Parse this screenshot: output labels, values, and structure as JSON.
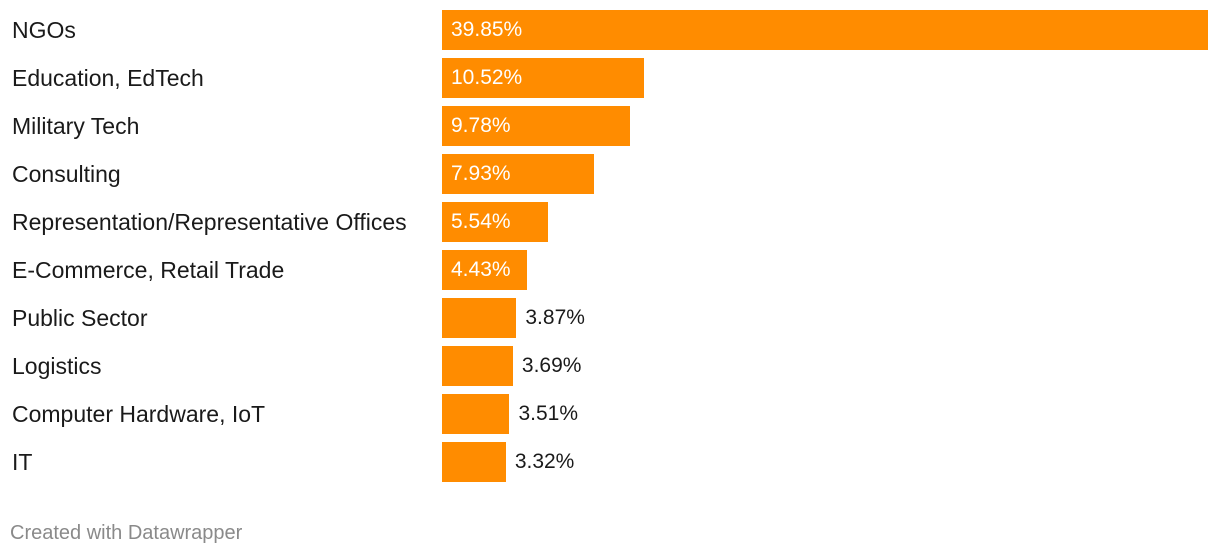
{
  "chart_data": {
    "type": "bar",
    "orientation": "horizontal",
    "categories": [
      "NGOs",
      "Education, EdTech",
      "Military Tech",
      "Consulting",
      "Representation/Representative Offices",
      "E-Commerce, Retail Trade",
      "Public Sector",
      "Logistics",
      "Computer Hardware, IoT",
      "IT"
    ],
    "values": [
      39.85,
      10.52,
      9.78,
      7.93,
      5.54,
      4.43,
      3.87,
      3.69,
      3.51,
      3.32
    ],
    "value_labels": [
      "39.85%",
      "10.52%",
      "9.78%",
      "7.93%",
      "5.54%",
      "4.43%",
      "3.87%",
      "3.69%",
      "3.51%",
      "3.32%"
    ],
    "title": "",
    "xlabel": "",
    "ylabel": "",
    "xlim": [
      0,
      39.85
    ],
    "grid": false,
    "bar_color": "#ff8c00"
  },
  "footer": {
    "credit": "Created with Datawrapper"
  }
}
